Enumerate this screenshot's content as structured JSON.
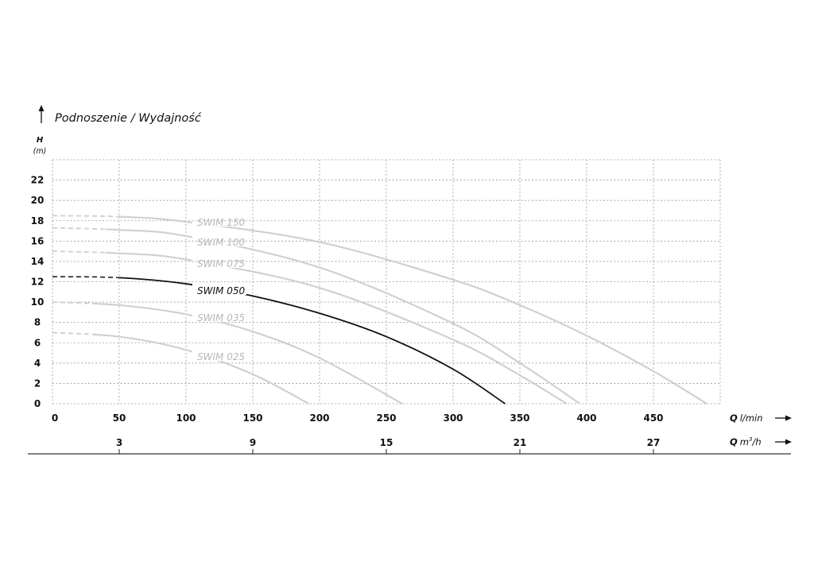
{
  "chart_data": {
    "type": "line",
    "title": "Podnoszenie / Wydajność",
    "ylabel": "H",
    "yunit": "(m)",
    "xlabel": "Q",
    "xunit": "l/min",
    "x2label": "Q",
    "x2unit": "m",
    "x2unit_sup": "3",
    "x2unit_tail": "/h",
    "xlim": [
      0,
      500
    ],
    "ylim": [
      0,
      24
    ],
    "grid": true,
    "xticks": [
      0,
      50,
      100,
      150,
      200,
      250,
      300,
      350,
      400,
      450
    ],
    "yticks": [
      0,
      2,
      4,
      6,
      8,
      10,
      12,
      14,
      16,
      18,
      20,
      22
    ],
    "x2ticks": [
      {
        "label": "3",
        "at_lmin": 50
      },
      {
        "label": "9",
        "at_lmin": 150
      },
      {
        "label": "15",
        "at_lmin": 250
      },
      {
        "label": "21",
        "at_lmin": 350
      },
      {
        "label": "27",
        "at_lmin": 450
      }
    ],
    "series": [
      {
        "name": "SWIM 150",
        "color": "#d0d0d0",
        "label_color": "#b8b8b8",
        "dashed_until": 50,
        "points": [
          [
            0,
            18.5
          ],
          [
            50,
            18.4
          ],
          [
            100,
            17.9
          ],
          [
            200,
            15.9
          ],
          [
            300,
            12.2
          ],
          [
            350,
            9.7
          ],
          [
            400,
            6.7
          ],
          [
            450,
            3.2
          ],
          [
            490,
            0
          ]
        ]
      },
      {
        "name": "SWIM 100",
        "color": "#d0d0d0",
        "label_color": "#b8b8b8",
        "dashed_until": 40,
        "points": [
          [
            0,
            17.3
          ],
          [
            50,
            17.1
          ],
          [
            100,
            16.5
          ],
          [
            200,
            13.4
          ],
          [
            300,
            7.9
          ],
          [
            350,
            4.0
          ],
          [
            395,
            0
          ]
        ]
      },
      {
        "name": "SWIM 075",
        "color": "#d0d0d0",
        "label_color": "#b8b8b8",
        "dashed_until": 40,
        "points": [
          [
            0,
            15
          ],
          [
            50,
            14.8
          ],
          [
            100,
            14.2
          ],
          [
            200,
            11.4
          ],
          [
            300,
            6.3
          ],
          [
            350,
            2.8
          ],
          [
            385,
            0
          ]
        ]
      },
      {
        "name": "SWIM 050",
        "color": "#111111",
        "label_color": "#111111",
        "dashed_until": 50,
        "points": [
          [
            0,
            12.5
          ],
          [
            50,
            12.4
          ],
          [
            100,
            11.8
          ],
          [
            150,
            10.6
          ],
          [
            200,
            8.9
          ],
          [
            250,
            6.6
          ],
          [
            300,
            3.4
          ],
          [
            339,
            0
          ]
        ]
      },
      {
        "name": "SWIM 035",
        "color": "#d0d0d0",
        "label_color": "#b8b8b8",
        "dashed_until": 30,
        "points": [
          [
            0,
            10
          ],
          [
            50,
            9.7
          ],
          [
            100,
            8.8
          ],
          [
            150,
            7.1
          ],
          [
            200,
            4.5
          ],
          [
            262,
            0
          ]
        ]
      },
      {
        "name": "SWIM 025",
        "color": "#d0d0d0",
        "label_color": "#b8b8b8",
        "dashed_until": 30,
        "points": [
          [
            0,
            7
          ],
          [
            50,
            6.6
          ],
          [
            100,
            5.3
          ],
          [
            150,
            2.9
          ],
          [
            192,
            0
          ]
        ]
      }
    ]
  }
}
